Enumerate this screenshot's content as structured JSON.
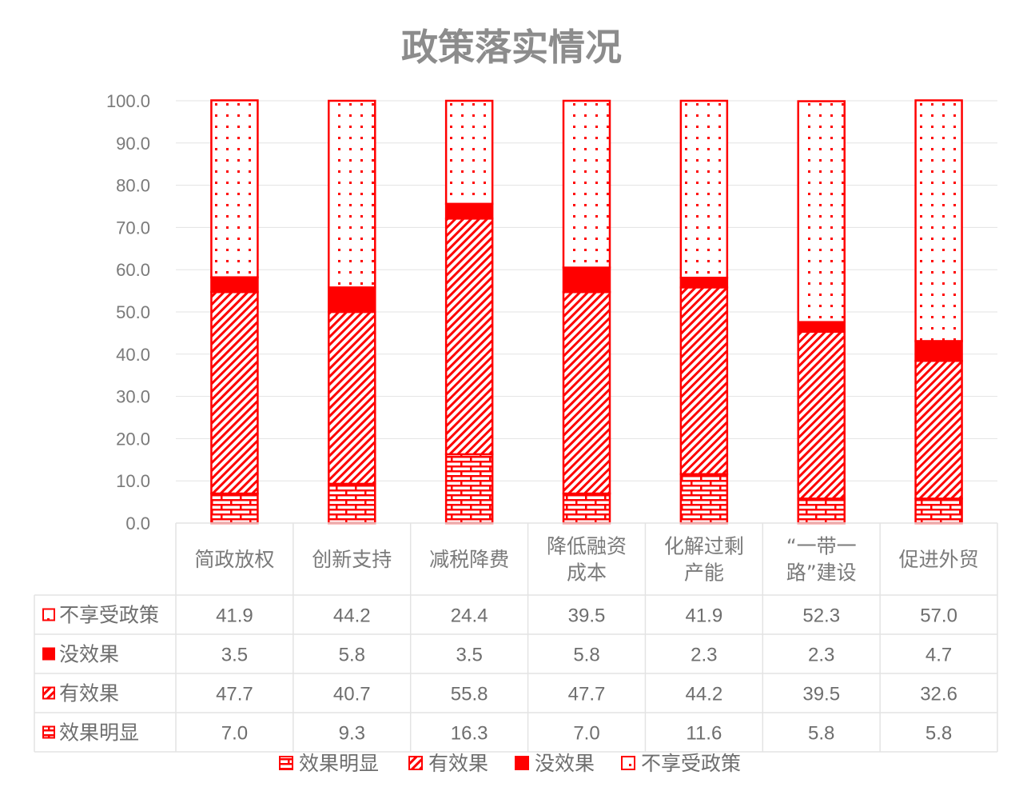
{
  "chart_data": {
    "type": "bar",
    "stacked": true,
    "title": "政策落实情况",
    "categories": [
      [
        "简政放权"
      ],
      [
        "创新支持"
      ],
      [
        "减税降费"
      ],
      [
        "降低融资",
        "成本"
      ],
      [
        "化解过剩",
        "产能"
      ],
      [
        "“一带一",
        "路”建设"
      ],
      [
        "促进外贸"
      ]
    ],
    "ylim": [
      0,
      100
    ],
    "yticks": [
      "0.0",
      "10.0",
      "20.0",
      "30.0",
      "40.0",
      "50.0",
      "60.0",
      "70.0",
      "80.0",
      "90.0",
      "100.0"
    ],
    "series": [
      {
        "name": "效果明显",
        "pattern": "brick",
        "values": [
          7.0,
          9.3,
          16.3,
          7.0,
          11.6,
          5.8,
          5.8
        ]
      },
      {
        "name": "有效果",
        "pattern": "hatch",
        "values": [
          47.7,
          40.7,
          55.8,
          47.7,
          44.2,
          39.5,
          32.6
        ]
      },
      {
        "name": "没效果",
        "pattern": "solid",
        "values": [
          3.5,
          5.8,
          3.5,
          5.8,
          2.3,
          2.3,
          4.7
        ]
      },
      {
        "name": "不享受政策",
        "pattern": "dots",
        "values": [
          41.9,
          44.2,
          24.4,
          39.5,
          41.9,
          52.3,
          57.0
        ]
      }
    ],
    "table_rows": [
      {
        "name": "不享受政策",
        "pattern": "dots",
        "values": [
          "41.9",
          "44.2",
          "24.4",
          "39.5",
          "41.9",
          "52.3",
          "57.0"
        ]
      },
      {
        "name": "没效果",
        "pattern": "solid",
        "values": [
          "3.5",
          "5.8",
          "3.5",
          "5.8",
          "2.3",
          "2.3",
          "4.7"
        ]
      },
      {
        "name": "有效果",
        "pattern": "hatch",
        "values": [
          "47.7",
          "40.7",
          "55.8",
          "47.7",
          "44.2",
          "39.5",
          "32.6"
        ]
      },
      {
        "name": "效果明显",
        "pattern": "brick",
        "values": [
          "7.0",
          "9.3",
          "16.3",
          "7.0",
          "11.6",
          "5.8",
          "5.8"
        ]
      }
    ],
    "legend": [
      "效果明显",
      "有效果",
      "没效果",
      "不享受政策"
    ],
    "legend_position": "bottom",
    "grid": true,
    "colors": {
      "accent": "#ff0000",
      "grid": "#e3e3e3",
      "text": "#7a7a7a"
    }
  }
}
